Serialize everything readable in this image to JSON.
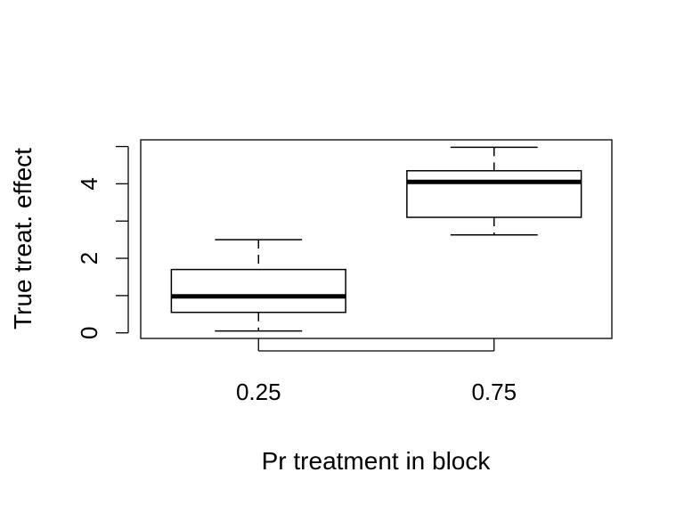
{
  "chart_data": {
    "type": "box",
    "title": "",
    "xlabel": "Pr treatment in block",
    "ylabel": "True treat. effect",
    "categories": [
      "0.25",
      "0.75"
    ],
    "boxes": [
      {
        "category": "0.25",
        "whisker_low": 0.05,
        "q1": 0.55,
        "median": 0.98,
        "q3": 1.7,
        "whisker_high": 2.5
      },
      {
        "category": "0.75",
        "whisker_low": 2.63,
        "q1": 3.1,
        "median": 4.05,
        "q3": 4.35,
        "whisker_high": 4.98
      }
    ],
    "ylim": [
      -0.15,
      5.18
    ],
    "y_major_ticks": [
      0,
      2,
      4
    ],
    "y_minor_ticks": [
      1,
      3,
      5
    ],
    "grid": false,
    "colors": {
      "box_fill": "#ffffff",
      "stroke": "#000000"
    }
  }
}
